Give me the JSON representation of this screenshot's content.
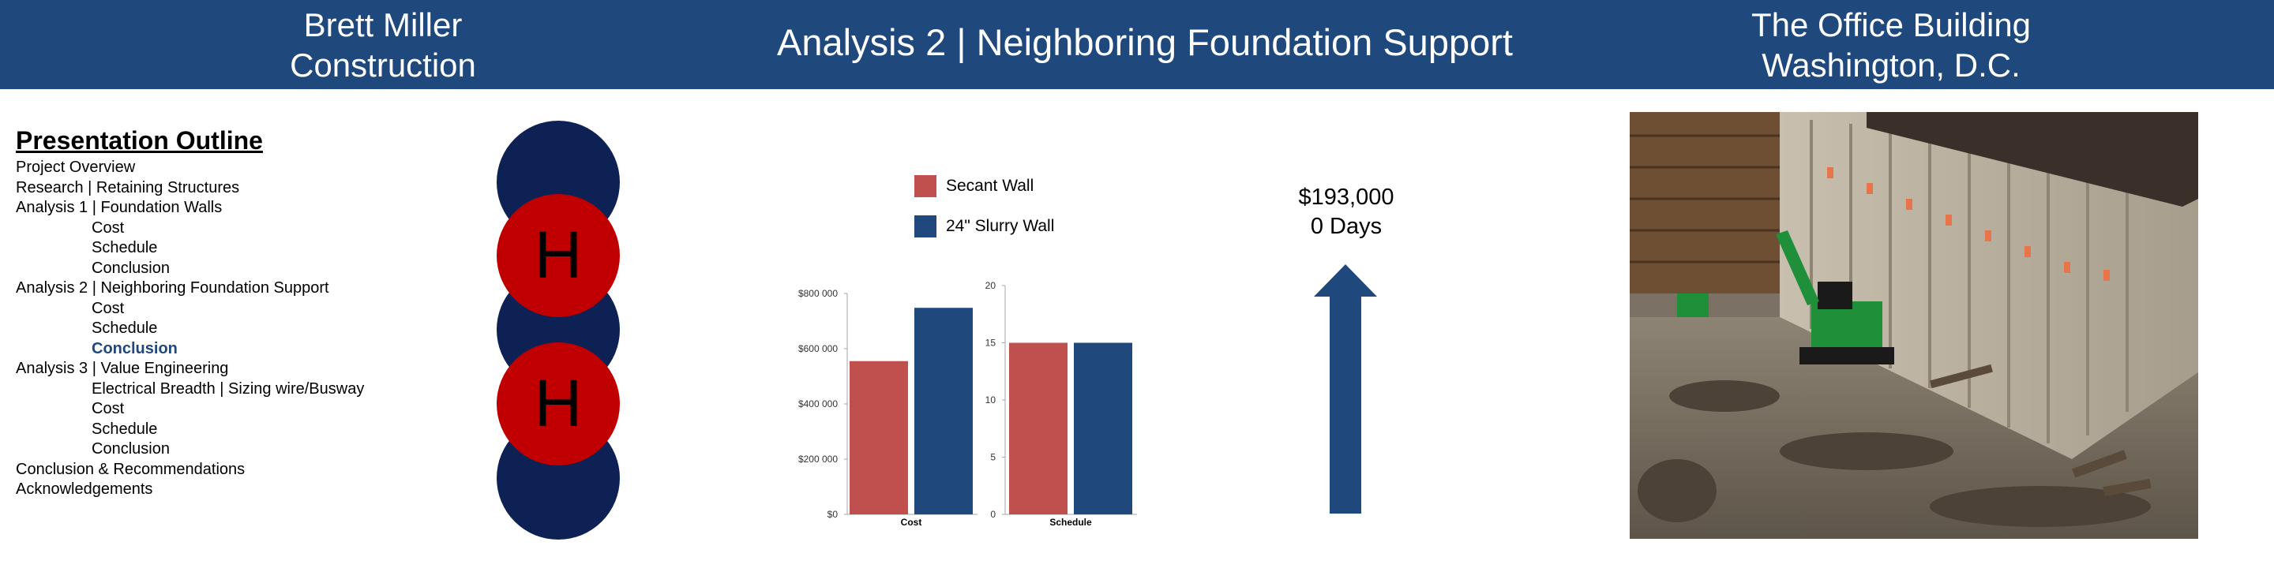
{
  "header": {
    "left_line1": "Brett Miller",
    "left_line2": "Construction",
    "center": "Analysis 2 | Neighboring Foundation Support",
    "right_line1": "The Office Building",
    "right_line2": "Washington, D.C."
  },
  "outline": {
    "title": "Presentation Outline",
    "items": [
      {
        "label": "Project Overview"
      },
      {
        "label": "Research | Retaining Structures"
      },
      {
        "label": "Analysis 1 | Foundation Walls"
      },
      {
        "label": "Cost"
      },
      {
        "label": "Schedule"
      },
      {
        "label": "Conclusion"
      },
      {
        "label": "Analysis 2 | Neighboring Foundation Support"
      },
      {
        "label": "Cost"
      },
      {
        "label": "Schedule"
      },
      {
        "label": "Conclusion"
      },
      {
        "label": "Analysis 3 | Value Engineering"
      },
      {
        "label": "Electrical Breadth | Sizing wire/Busway"
      },
      {
        "label": "Cost"
      },
      {
        "label": "Schedule"
      },
      {
        "label": "Conclusion"
      },
      {
        "label": "Conclusion & Recommendations"
      },
      {
        "label": "Acknowledgements"
      }
    ]
  },
  "marker_letter": "H",
  "colors": {
    "header_bg": "#1f497d",
    "navy_circle": "#0d2155",
    "red_circle": "#c00000",
    "secant": "#c0504d",
    "slurry": "#1f497d",
    "arrow": "#1f497d",
    "active_outline_item": "#1f497d"
  },
  "legend": {
    "secant": "Secant Wall",
    "slurry": "24\" Slurry Wall"
  },
  "callout": {
    "line1": "$193,000",
    "line2": "0 Days",
    "arrow_icon": "up-arrow"
  },
  "chart_data": [
    {
      "type": "bar",
      "categories": [
        "Cost"
      ],
      "series": [
        {
          "name": "Secant Wall",
          "values": [
            555000
          ]
        },
        {
          "name": "24\" Slurry Wall",
          "values": [
            748000
          ]
        }
      ],
      "ylim": [
        0,
        800000
      ],
      "yticks": [
        "$0",
        "$200 000",
        "$400 000",
        "$600 000",
        "$800 000"
      ],
      "xlabel": "",
      "ylabel": "",
      "title": ""
    },
    {
      "type": "bar",
      "categories": [
        "Schedule"
      ],
      "series": [
        {
          "name": "Secant Wall",
          "values": [
            15
          ]
        },
        {
          "name": "24\" Slurry Wall",
          "values": [
            15
          ]
        }
      ],
      "ylim": [
        0,
        20
      ],
      "yticks": [
        "0",
        "5",
        "10",
        "15",
        "20"
      ],
      "xlabel": "",
      "ylabel": "",
      "title": ""
    }
  ],
  "photo": {
    "subject": "construction-site-excavation"
  }
}
